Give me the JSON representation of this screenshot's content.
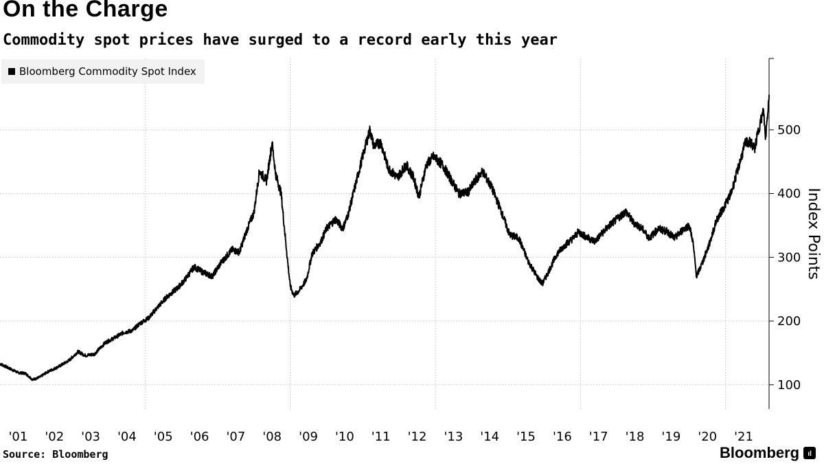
{
  "chart_data": {
    "type": "line",
    "title": "On the Charge",
    "subtitle": "Commodity spot prices have surged to a record early this year",
    "ylabel": "Index Points",
    "xlabel": "",
    "ylim": [
      62,
      612
    ],
    "xlim": [
      2001.0,
      2022.2
    ],
    "yticks": [
      100,
      200,
      300,
      400,
      500
    ],
    "xticks": [
      "'01",
      "'02",
      "'03",
      "'04",
      "'05",
      "'06",
      "'07",
      "'08",
      "'09",
      "'10",
      "'11",
      "'12",
      "'13",
      "'14",
      "'15",
      "'16",
      "'17",
      "'18",
      "'19",
      "'20",
      "'21"
    ],
    "gridlines": true,
    "legend_position": "top-left",
    "series": [
      {
        "name": "Bloomberg Commodity Spot Index",
        "color": "#000000",
        "points": [
          [
            2001.0,
            133
          ],
          [
            2001.25,
            126
          ],
          [
            2001.5,
            119
          ],
          [
            2001.7,
            118
          ],
          [
            2001.9,
            108
          ],
          [
            2002.1,
            112
          ],
          [
            2002.3,
            120
          ],
          [
            2002.6,
            128
          ],
          [
            2002.9,
            138
          ],
          [
            2003.15,
            152
          ],
          [
            2003.35,
            146
          ],
          [
            2003.6,
            148
          ],
          [
            2003.9,
            166
          ],
          [
            2004.2,
            175
          ],
          [
            2004.4,
            182
          ],
          [
            2004.65,
            185
          ],
          [
            2004.85,
            196
          ],
          [
            2005.1,
            205
          ],
          [
            2005.35,
            222
          ],
          [
            2005.6,
            238
          ],
          [
            2005.9,
            252
          ],
          [
            2006.1,
            265
          ],
          [
            2006.35,
            285
          ],
          [
            2006.55,
            278
          ],
          [
            2006.85,
            270
          ],
          [
            2007.1,
            292
          ],
          [
            2007.4,
            312
          ],
          [
            2007.6,
            308
          ],
          [
            2007.8,
            342
          ],
          [
            2008.0,
            370
          ],
          [
            2008.15,
            435
          ],
          [
            2008.35,
            420
          ],
          [
            2008.5,
            480
          ],
          [
            2008.6,
            430
          ],
          [
            2008.75,
            400
          ],
          [
            2008.9,
            310
          ],
          [
            2009.0,
            255
          ],
          [
            2009.1,
            240
          ],
          [
            2009.25,
            248
          ],
          [
            2009.45,
            265
          ],
          [
            2009.6,
            305
          ],
          [
            2009.85,
            325
          ],
          [
            2010.0,
            345
          ],
          [
            2010.25,
            360
          ],
          [
            2010.45,
            345
          ],
          [
            2010.6,
            368
          ],
          [
            2010.85,
            425
          ],
          [
            2011.05,
            470
          ],
          [
            2011.2,
            500
          ],
          [
            2011.3,
            475
          ],
          [
            2011.5,
            480
          ],
          [
            2011.7,
            440
          ],
          [
            2011.95,
            425
          ],
          [
            2012.2,
            445
          ],
          [
            2012.4,
            425
          ],
          [
            2012.55,
            395
          ],
          [
            2012.75,
            445
          ],
          [
            2012.95,
            458
          ],
          [
            2013.2,
            445
          ],
          [
            2013.45,
            420
          ],
          [
            2013.65,
            400
          ],
          [
            2013.9,
            402
          ],
          [
            2014.1,
            420
          ],
          [
            2014.3,
            435
          ],
          [
            2014.55,
            410
          ],
          [
            2014.8,
            375
          ],
          [
            2015.05,
            335
          ],
          [
            2015.3,
            330
          ],
          [
            2015.55,
            295
          ],
          [
            2015.8,
            270
          ],
          [
            2015.95,
            258
          ],
          [
            2016.1,
            275
          ],
          [
            2016.35,
            305
          ],
          [
            2016.55,
            318
          ],
          [
            2016.8,
            330
          ],
          [
            2016.95,
            340
          ],
          [
            2017.15,
            332
          ],
          [
            2017.4,
            325
          ],
          [
            2017.6,
            338
          ],
          [
            2017.8,
            350
          ],
          [
            2018.05,
            362
          ],
          [
            2018.25,
            372
          ],
          [
            2018.45,
            355
          ],
          [
            2018.7,
            345
          ],
          [
            2018.9,
            330
          ],
          [
            2019.15,
            345
          ],
          [
            2019.4,
            340
          ],
          [
            2019.6,
            330
          ],
          [
            2019.85,
            345
          ],
          [
            2020.0,
            350
          ],
          [
            2020.1,
            325
          ],
          [
            2020.2,
            270
          ],
          [
            2020.35,
            290
          ],
          [
            2020.55,
            320
          ],
          [
            2020.75,
            358
          ],
          [
            2020.95,
            378
          ],
          [
            2021.15,
            400
          ],
          [
            2021.35,
            440
          ],
          [
            2021.55,
            480
          ],
          [
            2021.7,
            480
          ],
          [
            2021.8,
            470
          ],
          [
            2021.95,
            510
          ],
          [
            2022.05,
            530
          ],
          [
            2022.1,
            485
          ],
          [
            2022.15,
            520
          ],
          [
            2022.2,
            555
          ]
        ]
      }
    ]
  },
  "footer": {
    "source": "Source: Bloomberg",
    "logo": "Bloomberg",
    "logo_mark": "ıl"
  },
  "colors": {
    "line": "#000000",
    "grid": "#cfcfcf",
    "legend_bg": "#f2f2f2"
  }
}
